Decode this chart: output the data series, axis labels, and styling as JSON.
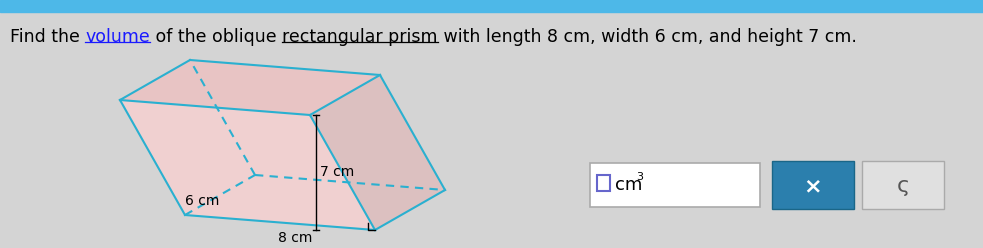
{
  "background_color": "#d4d4d4",
  "header_color": "#4db8e8",
  "prism_line_color": "#2ab0d0",
  "label_8cm": "8 cm",
  "label_6cm": "6 cm",
  "label_7cm": "7 cm",
  "input_box_color": "#ffffff",
  "cm3_text": "cm",
  "x_button_color": "#2b7fad",
  "x_button_text": "×",
  "s_button_color": "#e0e0e0",
  "s_button_text": "ς",
  "title_pieces": [
    [
      "Find the ",
      "black",
      false,
      false
    ],
    [
      "volume",
      "#1a1aff",
      false,
      true
    ],
    [
      " of the oblique ",
      "black",
      false,
      false
    ],
    [
      "rectangular prism",
      "black",
      false,
      true
    ],
    [
      " with length 8 cm, width 6 cm, and height 7 cm.",
      "black",
      false,
      false
    ]
  ],
  "bfl": [
    185,
    215
  ],
  "bfr": [
    375,
    230
  ],
  "bbr": [
    445,
    190
  ],
  "bbl": [
    255,
    175
  ],
  "shift": [
    -65,
    -115
  ],
  "lw": 1.5,
  "fs_title": 12.5,
  "fs_label": 10
}
